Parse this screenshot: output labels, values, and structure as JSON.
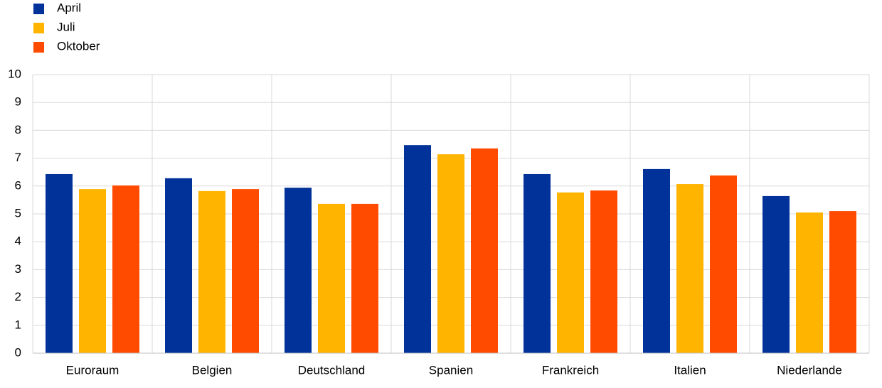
{
  "chart_data": {
    "type": "bar",
    "categories": [
      "Euroraum",
      "Belgien",
      "Deutschland",
      "Spanien",
      "Frankreich",
      "Italien",
      "Niederlande"
    ],
    "series": [
      {
        "name": "April",
        "color": "#003299",
        "values": [
          6.43,
          6.28,
          5.94,
          7.47,
          6.43,
          6.61,
          5.64
        ]
      },
      {
        "name": "Juli",
        "color": "#ffb400",
        "values": [
          5.89,
          5.82,
          5.36,
          7.14,
          5.77,
          6.07,
          5.05
        ]
      },
      {
        "name": "Oktober",
        "color": "#ff4b00",
        "values": [
          6.02,
          5.89,
          5.36,
          7.35,
          5.84,
          6.38,
          5.1
        ]
      }
    ],
    "ylim": [
      0,
      10
    ],
    "yticks": [
      0,
      1,
      2,
      3,
      4,
      5,
      6,
      7,
      8,
      9,
      10
    ],
    "grid": true,
    "legend": "top-left"
  }
}
